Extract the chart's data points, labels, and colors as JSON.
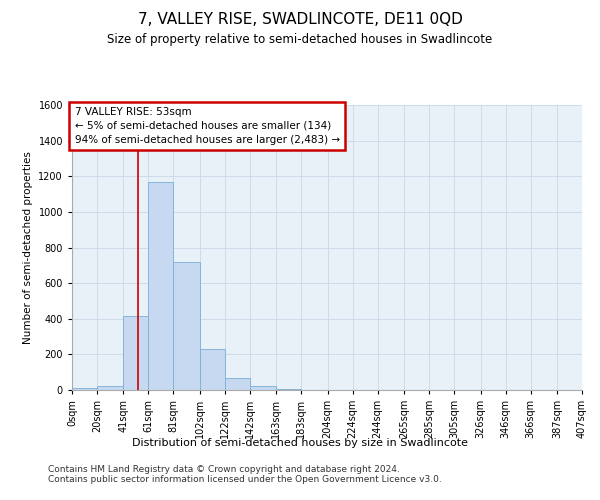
{
  "title": "7, VALLEY RISE, SWADLINCOTE, DE11 0QD",
  "subtitle": "Size of property relative to semi-detached houses in Swadlincote",
  "xlabel": "Distribution of semi-detached houses by size in Swadlincote",
  "ylabel": "Number of semi-detached properties",
  "footnote1": "Contains HM Land Registry data © Crown copyright and database right 2024.",
  "footnote2": "Contains public sector information licensed under the Open Government Licence v3.0.",
  "annotation_title": "7 VALLEY RISE: 53sqm",
  "annotation_line1": "← 5% of semi-detached houses are smaller (134)",
  "annotation_line2": "94% of semi-detached houses are larger (2,483) →",
  "property_size": 53,
  "bar_edges": [
    0,
    20,
    41,
    61,
    81,
    102,
    122,
    142,
    163,
    183,
    204,
    224,
    244,
    265,
    285,
    305,
    326,
    346,
    366,
    387,
    407
  ],
  "bar_heights": [
    10,
    25,
    415,
    1170,
    720,
    230,
    65,
    25,
    5,
    0,
    0,
    0,
    0,
    0,
    0,
    0,
    0,
    0,
    0,
    0
  ],
  "bar_color": "#c6d9f0",
  "bar_edge_color": "#7bafd4",
  "vline_color": "#cc0000",
  "vline_x": 53,
  "ylim": [
    0,
    1600
  ],
  "yticks": [
    0,
    200,
    400,
    600,
    800,
    1000,
    1200,
    1400,
    1600
  ],
  "grid_color": "#c8d8e8",
  "bg_color": "#e8f0f8",
  "annotation_box_color": "#cc0000",
  "title_fontsize": 11,
  "subtitle_fontsize": 8.5,
  "xlabel_fontsize": 8,
  "ylabel_fontsize": 7.5,
  "tick_fontsize": 7,
  "annotation_fontsize": 7.5,
  "footnote_fontsize": 6.5
}
